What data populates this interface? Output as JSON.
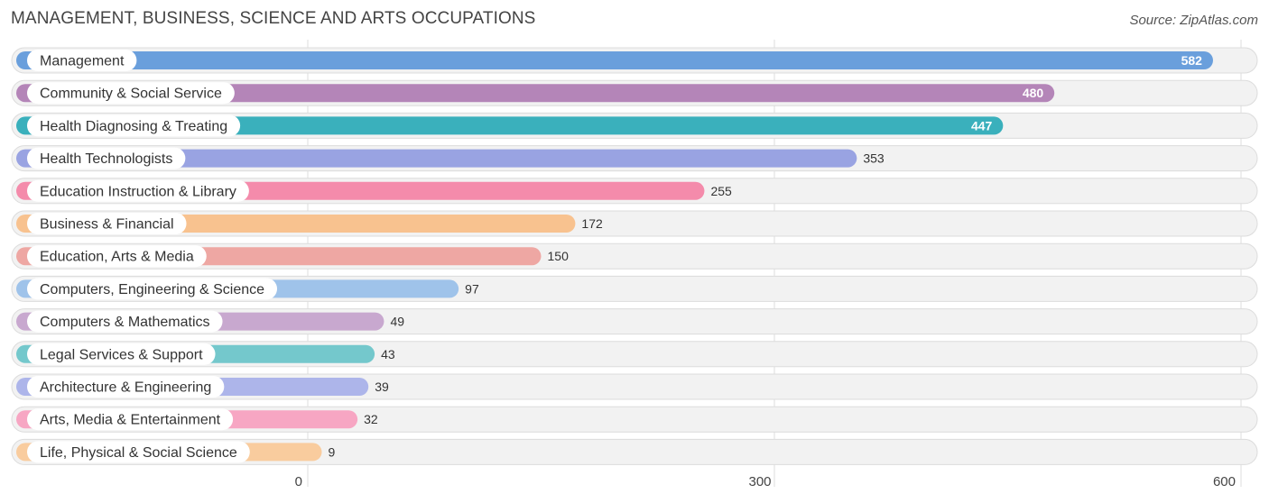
{
  "title": "MANAGEMENT, BUSINESS, SCIENCE AND ARTS OCCUPATIONS",
  "source": "Source: ZipAtlas.com",
  "chart_data": {
    "type": "bar",
    "orientation": "horizontal",
    "title": "MANAGEMENT, BUSINESS, SCIENCE AND ARTS OCCUPATIONS",
    "xlim": [
      0,
      600
    ],
    "xticks": [
      0,
      300,
      600
    ],
    "xtick_labels": [
      "0",
      "300",
      "600"
    ],
    "grid": true,
    "categories": [
      "Management",
      "Community & Social Service",
      "Health Diagnosing & Treating",
      "Health Technologists",
      "Education Instruction & Library",
      "Business & Financial",
      "Education, Arts & Media",
      "Computers, Engineering & Science",
      "Computers & Mathematics",
      "Legal Services & Support",
      "Architecture & Engineering",
      "Arts, Media & Entertainment",
      "Life, Physical & Social Science"
    ],
    "values": [
      582,
      480,
      447,
      353,
      255,
      172,
      150,
      97,
      49,
      43,
      39,
      32,
      9
    ],
    "value_labels": [
      "582",
      "480",
      "447",
      "353",
      "255",
      "172",
      "150",
      "97",
      "49",
      "43",
      "39",
      "32",
      "9"
    ],
    "colors": [
      "#6a9fdc",
      "#b485b8",
      "#3ab0bc",
      "#99a3e2",
      "#f48bab",
      "#f8c28f",
      "#eea7a3",
      "#9fc3ea",
      "#c8a8cf",
      "#74c8cc",
      "#adb5ea",
      "#f7a6c3",
      "#f9cc9e"
    ]
  }
}
